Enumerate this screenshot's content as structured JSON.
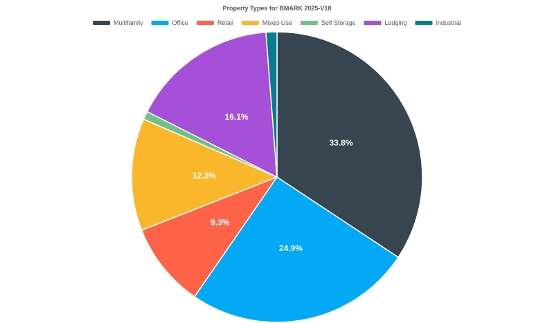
{
  "chart_data": {
    "type": "pie",
    "title": "Property Types for BMARK 2025-V18",
    "legend_position": "top",
    "slices": [
      {
        "name": "Multifamily",
        "value": 33.8,
        "label": "33.8%",
        "color": "#36454f"
      },
      {
        "name": "Office",
        "value": 24.9,
        "label": "24.9%",
        "color": "#03a9f4"
      },
      {
        "name": "Retail",
        "value": 9.3,
        "label": "9.3%",
        "color": "#ff6347"
      },
      {
        "name": "Mixed-Use",
        "value": 12.3,
        "label": "12.3%",
        "color": "#fbb72b"
      },
      {
        "name": "Self Storage",
        "value": 0.9,
        "label": "",
        "color": "#6dc289"
      },
      {
        "name": "Lodging",
        "value": 16.1,
        "label": "16.1%",
        "color": "#a64fd8"
      },
      {
        "name": "Industrial",
        "value": 1.2,
        "label": "",
        "color": "#087d8e"
      }
    ]
  }
}
